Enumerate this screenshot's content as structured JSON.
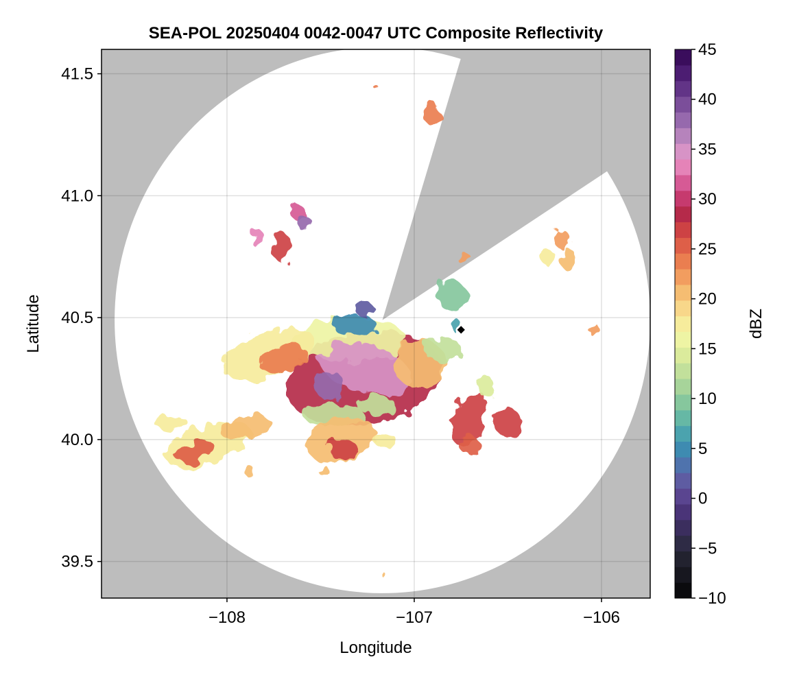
{
  "chart_data": {
    "type": "heatmap",
    "title": "SEA-POL 20250404 0042-0047 UTC Composite Reflectivity",
    "xlabel": "Longitude",
    "ylabel": "Latitude",
    "xlim": [
      -108.67,
      -105.74
    ],
    "ylim": [
      39.35,
      41.6
    ],
    "x_ticks": [
      -108,
      -107,
      -106
    ],
    "x_tick_labels": [
      "−108",
      "−107",
      "−106"
    ],
    "y_ticks": [
      39.5,
      40.0,
      40.5,
      41.0,
      41.5
    ],
    "y_tick_labels": [
      "39.5",
      "40.0",
      "40.5",
      "41.0",
      "41.5"
    ],
    "grid": true,
    "background_color": "#bdbdbd",
    "radar_domain_color": "#ffffff",
    "radar": {
      "center": [
        -107.17,
        40.49
      ],
      "range_lat_deg": 1.12,
      "range_lon_deg": 1.43,
      "blocked_sector": {
        "bearing_from_deg": 17,
        "bearing_to_deg": 57
      }
    },
    "marker": {
      "lon": -106.75,
      "lat": 40.45,
      "color": "#000000"
    },
    "colorbar": {
      "label": "dBZ",
      "min": -10,
      "max": 45,
      "step": 2,
      "ticks": [
        -10,
        -5,
        0,
        5,
        10,
        15,
        20,
        25,
        30,
        35,
        40,
        45
      ],
      "tick_labels": [
        "−10",
        "−5",
        "0",
        "5",
        "10",
        "15",
        "20",
        "25",
        "30",
        "35",
        "40",
        "45"
      ],
      "colors": [
        "#0b0b0e",
        "#17171f",
        "#22222f",
        "#2e2b45",
        "#3b2e5e",
        "#4a3478",
        "#5a4590",
        "#5e5ca2",
        "#4f73ad",
        "#3e8bb1",
        "#4ba3ae",
        "#66b8a5",
        "#86c79d",
        "#a7d49a",
        "#c2e09b",
        "#dbeb9c",
        "#eef4a4",
        "#f6ec9c",
        "#f8d78a",
        "#f5bd72",
        "#f29d5f",
        "#ea7e50",
        "#de5f48",
        "#cd4244",
        "#b52a4a",
        "#c63a6e",
        "#d65a95",
        "#e583b8",
        "#d793c6",
        "#b683bc",
        "#9669ad",
        "#7b4e9a",
        "#623487",
        "#4c1d72",
        "#3a0d5c"
      ]
    },
    "echoes": [
      {
        "lon": -107.27,
        "lat": 40.25,
        "rlon": 0.42,
        "rlat": 0.19,
        "dbz": 29,
        "angle": -10
      },
      {
        "lon": -107.34,
        "lat": 40.41,
        "rlon": 0.3,
        "rlat": 0.09,
        "dbz": 16,
        "angle": 0
      },
      {
        "lon": -107.26,
        "lat": 40.29,
        "rlon": 0.25,
        "rlat": 0.1,
        "dbz": 34,
        "angle": 15
      },
      {
        "lon": -107.45,
        "lat": 40.22,
        "rlon": 0.08,
        "rlat": 0.06,
        "dbz": 38,
        "angle": 0
      },
      {
        "lon": -107.32,
        "lat": 40.47,
        "rlon": 0.12,
        "rlat": 0.04,
        "dbz": 5,
        "angle": 0
      },
      {
        "lon": -107.26,
        "lat": 40.53,
        "rlon": 0.05,
        "rlat": 0.03,
        "dbz": 2,
        "angle": 0
      },
      {
        "lon": -107.78,
        "lat": 40.35,
        "rlon": 0.26,
        "rlat": 0.09,
        "dbz": 17,
        "angle": -20
      },
      {
        "lon": -107.7,
        "lat": 40.33,
        "rlon": 0.13,
        "rlat": 0.05,
        "dbz": 24,
        "angle": -20
      },
      {
        "lon": -107.43,
        "lat": 40.1,
        "rlon": 0.16,
        "rlat": 0.05,
        "dbz": 12,
        "angle": 0
      },
      {
        "lon": -107.2,
        "lat": 40.14,
        "rlon": 0.1,
        "rlat": 0.04,
        "dbz": 12,
        "angle": 0
      },
      {
        "lon": -106.97,
        "lat": 40.31,
        "rlon": 0.14,
        "rlat": 0.1,
        "dbz": 20,
        "angle": 0
      },
      {
        "lon": -106.85,
        "lat": 40.37,
        "rlon": 0.1,
        "rlat": 0.05,
        "dbz": 12,
        "angle": 0
      },
      {
        "lon": -107.39,
        "lat": 40.0,
        "rlon": 0.19,
        "rlat": 0.09,
        "dbz": 20,
        "angle": -15
      },
      {
        "lon": -107.38,
        "lat": 39.96,
        "rlon": 0.08,
        "rlat": 0.04,
        "dbz": 27,
        "angle": 0
      },
      {
        "lon": -107.16,
        "lat": 40.0,
        "rlon": 0.06,
        "rlat": 0.03,
        "dbz": 18,
        "angle": 0
      },
      {
        "lon": -108.1,
        "lat": 39.98,
        "rlon": 0.24,
        "rlat": 0.08,
        "dbz": 18,
        "angle": -18
      },
      {
        "lon": -108.17,
        "lat": 39.95,
        "rlon": 0.11,
        "rlat": 0.04,
        "dbz": 25,
        "angle": -15
      },
      {
        "lon": -107.9,
        "lat": 40.05,
        "rlon": 0.14,
        "rlat": 0.05,
        "dbz": 20,
        "angle": -10
      },
      {
        "lon": -108.3,
        "lat": 40.07,
        "rlon": 0.09,
        "rlat": 0.03,
        "dbz": 18,
        "angle": 0
      },
      {
        "lon": -106.71,
        "lat": 40.09,
        "rlon": 0.08,
        "rlat": 0.12,
        "dbz": 27,
        "angle": 20
      },
      {
        "lon": -106.71,
        "lat": 39.98,
        "rlon": 0.05,
        "rlat": 0.04,
        "dbz": 25,
        "angle": 0
      },
      {
        "lon": -106.5,
        "lat": 40.07,
        "rlon": 0.07,
        "rlat": 0.06,
        "dbz": 27,
        "angle": 0
      },
      {
        "lon": -106.62,
        "lat": 40.22,
        "rlon": 0.05,
        "rlat": 0.04,
        "dbz": 15,
        "angle": 0
      },
      {
        "lon": -106.8,
        "lat": 40.59,
        "rlon": 0.08,
        "rlat": 0.06,
        "dbz": 9,
        "angle": 0
      },
      {
        "lon": -106.73,
        "lat": 40.74,
        "rlon": 0.04,
        "rlat": 0.02,
        "dbz": 22,
        "angle": 0
      },
      {
        "lon": -106.21,
        "lat": 40.82,
        "rlon": 0.04,
        "rlat": 0.04,
        "dbz": 22,
        "angle": 0
      },
      {
        "lon": -106.18,
        "lat": 40.74,
        "rlon": 0.05,
        "rlat": 0.04,
        "dbz": 20,
        "angle": 0
      },
      {
        "lon": -106.29,
        "lat": 40.75,
        "rlon": 0.04,
        "rlat": 0.03,
        "dbz": 17,
        "angle": 0
      },
      {
        "lon": -106.04,
        "lat": 40.45,
        "rlon": 0.02,
        "rlat": 0.03,
        "dbz": 22,
        "angle": 0
      },
      {
        "lon": -107.71,
        "lat": 40.79,
        "rlon": 0.05,
        "rlat": 0.06,
        "dbz": 27,
        "angle": 0
      },
      {
        "lon": -107.62,
        "lat": 40.93,
        "rlon": 0.04,
        "rlat": 0.03,
        "dbz": 32,
        "angle": 0
      },
      {
        "lon": -107.59,
        "lat": 40.89,
        "rlon": 0.04,
        "rlat": 0.03,
        "dbz": 38,
        "angle": 0
      },
      {
        "lon": -107.83,
        "lat": 40.82,
        "rlon": 0.03,
        "rlat": 0.04,
        "dbz": 33,
        "angle": 0
      },
      {
        "lon": -106.91,
        "lat": 41.34,
        "rlon": 0.04,
        "rlat": 0.05,
        "dbz": 24,
        "angle": 0
      },
      {
        "lon": -107.21,
        "lat": 41.45,
        "rlon": 0.01,
        "rlat": 0.01,
        "dbz": 23,
        "angle": 0
      },
      {
        "lon": -107.88,
        "lat": 39.87,
        "rlon": 0.03,
        "rlat": 0.02,
        "dbz": 21,
        "angle": 0
      },
      {
        "lon": -107.48,
        "lat": 39.87,
        "rlon": 0.03,
        "rlat": 0.02,
        "dbz": 21,
        "angle": 0
      },
      {
        "lon": -107.17,
        "lat": 39.45,
        "rlon": 0.01,
        "rlat": 0.01,
        "dbz": 20,
        "angle": 0
      },
      {
        "lon": -106.78,
        "lat": 40.47,
        "rlon": 0.02,
        "rlat": 0.03,
        "dbz": 6,
        "angle": 0
      }
    ]
  }
}
